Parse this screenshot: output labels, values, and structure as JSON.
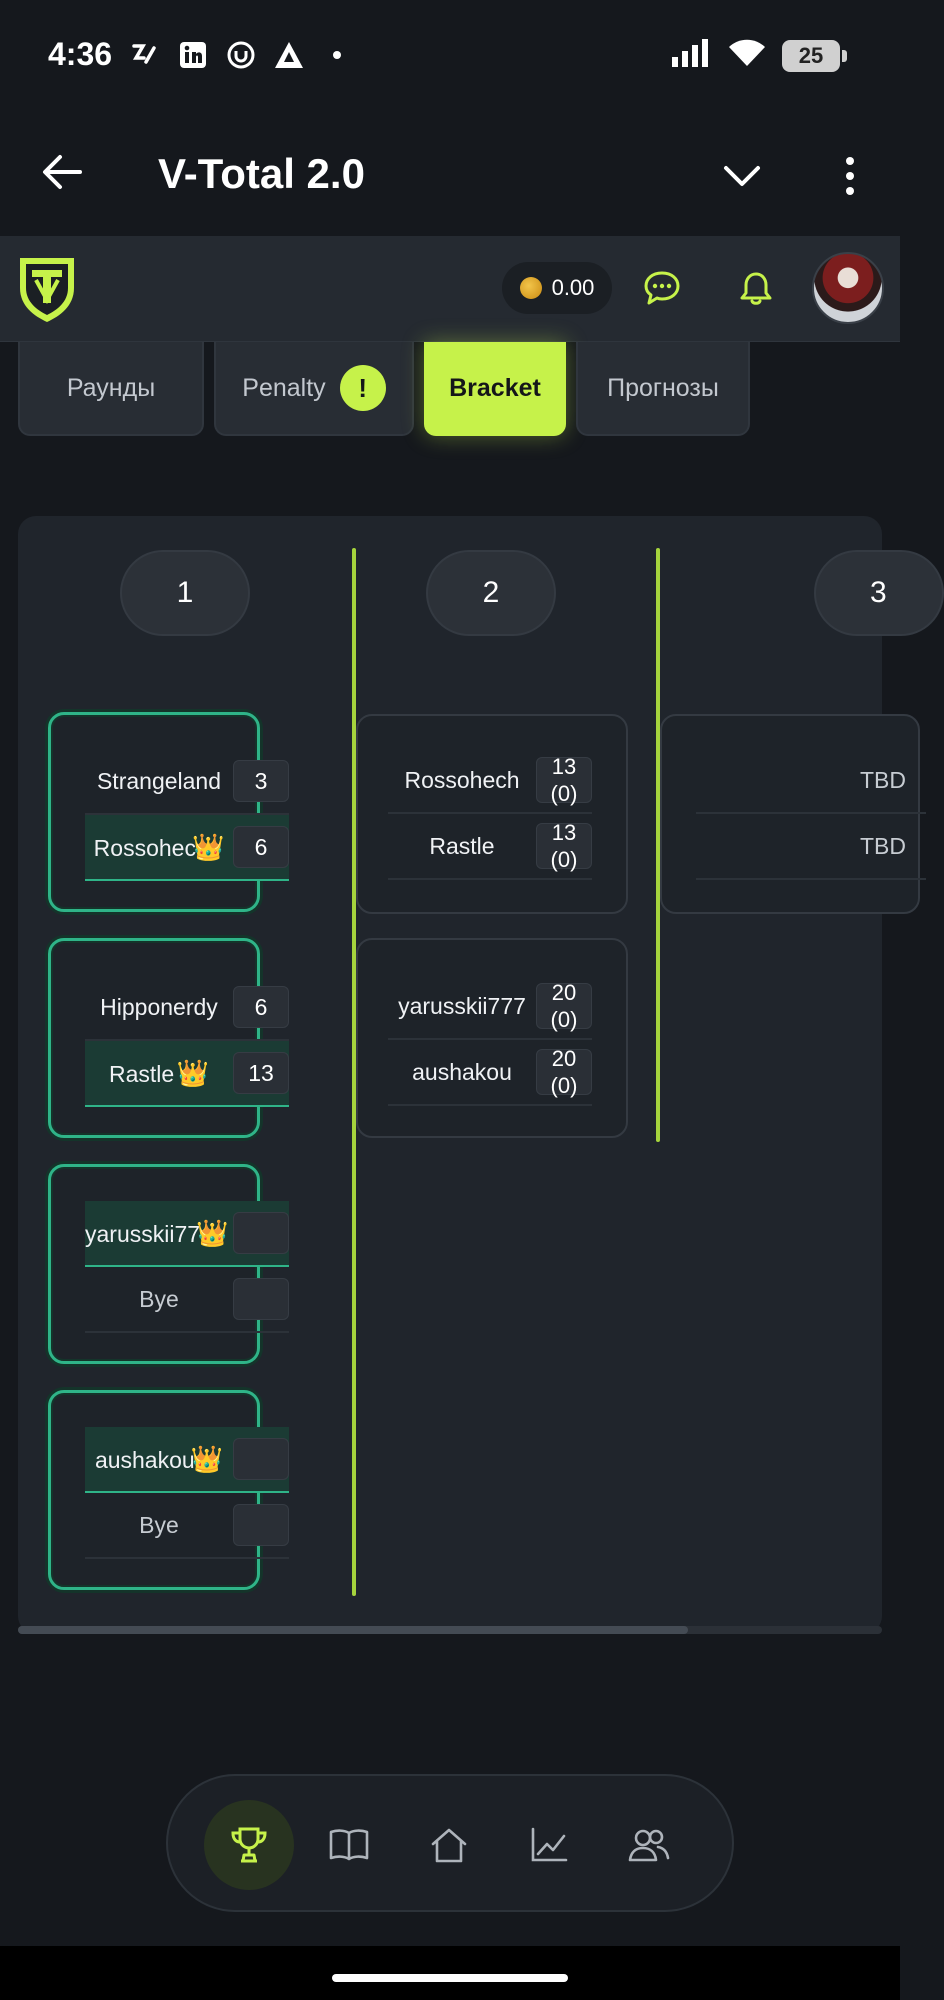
{
  "status_bar": {
    "time": "4:36",
    "battery": "25"
  },
  "app_bar": {
    "title": "V-Total 2.0"
  },
  "header": {
    "balance": "0.00"
  },
  "tabs": [
    {
      "label": "Раунды"
    },
    {
      "label": "Penalty",
      "badge": "!"
    },
    {
      "label": "Bracket"
    },
    {
      "label": "Прогнозы"
    }
  ],
  "bracket": {
    "rounds": [
      "1",
      "2",
      "3"
    ],
    "round1": [
      {
        "p1": "Strangeland",
        "s1": "3",
        "p2": "Rossohec",
        "s2": "6",
        "crown": "👑"
      },
      {
        "p1": "Hipponerdy",
        "s1": "6",
        "p2": "Rastle",
        "s2": "13",
        "crown": "👑"
      },
      {
        "p1": "yarusskii77",
        "s1": "",
        "p2": "Bye",
        "s2": "",
        "crown": "👑"
      },
      {
        "p1": "aushakou",
        "s1": "",
        "p2": "Bye",
        "s2": "",
        "crown": "👑"
      }
    ],
    "round2": [
      {
        "p1": "Rossohech",
        "s1a": "13",
        "s1b": "(0)",
        "p2": "Rastle",
        "s2a": "13",
        "s2b": "(0)"
      },
      {
        "p1": "yarusskii777",
        "s1a": "20",
        "s1b": "(0)",
        "p2": "aushakou",
        "s2a": "20",
        "s2b": "(0)"
      }
    ],
    "round3": [
      {
        "p1": "TBD",
        "p2": "TBD"
      }
    ]
  },
  "colors": {
    "accent": "#c6f24a",
    "win_border": "#2fb488",
    "background": "#15181d"
  }
}
